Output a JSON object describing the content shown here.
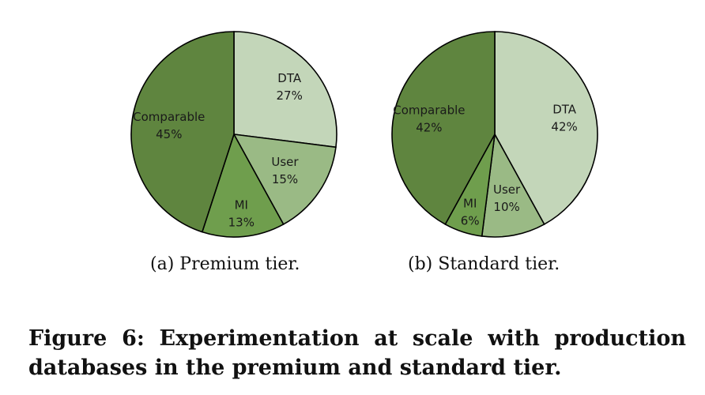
{
  "figure": {
    "caption": "Figure 6: Experimentation at scale with production databases in the premium and standard tier."
  },
  "chart_data": [
    {
      "type": "pie",
      "subcaption": "(a)  Premium tier.",
      "slices": [
        {
          "label": "DTA",
          "value": 27,
          "value_label": "27%",
          "color": "#c3d6b9"
        },
        {
          "label": "User",
          "value": 15,
          "value_label": "15%",
          "color": "#9aba85"
        },
        {
          "label": "MI",
          "value": 13,
          "value_label": "13%",
          "color": "#6f9e4d"
        },
        {
          "label": "Comparable",
          "value": 45,
          "value_label": "45%",
          "color": "#5f853f"
        }
      ]
    },
    {
      "type": "pie",
      "subcaption": "(b)  Standard tier.",
      "slices": [
        {
          "label": "DTA",
          "value": 42,
          "value_label": "42%",
          "color": "#c3d6b9"
        },
        {
          "label": "User",
          "value": 10,
          "value_label": "10%",
          "color": "#9aba85"
        },
        {
          "label": "MI",
          "value": 6,
          "value_label": "6%",
          "color": "#6f9e4d"
        },
        {
          "label": "Comparable",
          "value": 42,
          "value_label": "42%",
          "color": "#5f853f"
        }
      ]
    }
  ]
}
